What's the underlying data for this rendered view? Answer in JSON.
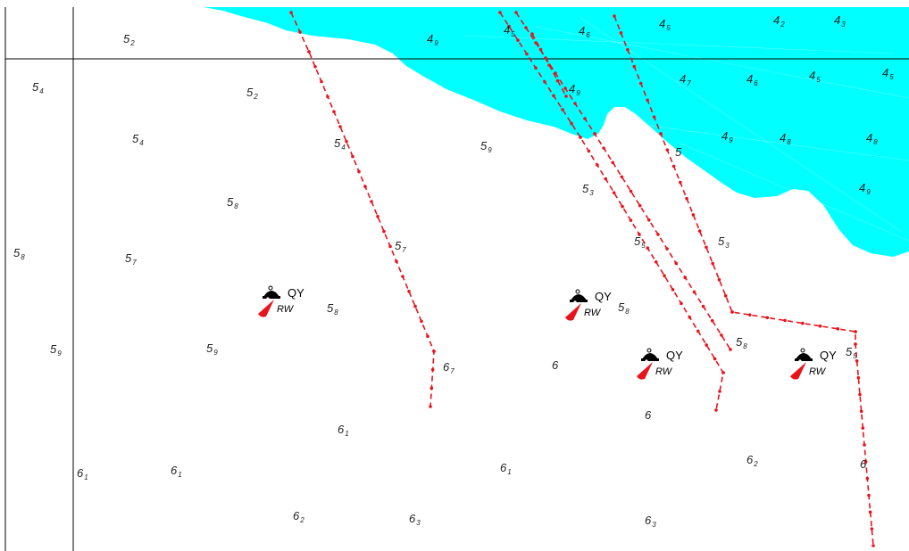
{
  "map": {
    "water_color": "#00ffff",
    "route_color": "#e8141b",
    "grid_color": "#000000",
    "sounding_color": "#222222"
  },
  "soundings": [
    {
      "base": "5",
      "sub": "2"
    },
    {
      "base": "5",
      "sub": "4"
    },
    {
      "base": "5",
      "sub": "2"
    },
    {
      "base": "5",
      "sub": "4"
    },
    {
      "base": "5",
      "sub": "4"
    },
    {
      "base": "5",
      "sub": "8"
    },
    {
      "base": "5",
      "sub": "8"
    },
    {
      "base": "5",
      "sub": "7"
    },
    {
      "base": "5",
      "sub": "7"
    },
    {
      "base": "5",
      "sub": "8"
    },
    {
      "base": "5",
      "sub": "9"
    },
    {
      "base": "5",
      "sub": "9"
    },
    {
      "base": "5",
      "sub": "9"
    },
    {
      "base": "5",
      "sub": "3"
    },
    {
      "base": "5",
      "sub": "5"
    },
    {
      "base": "5",
      "sub": "3"
    },
    {
      "base": "5",
      "sub": "8"
    },
    {
      "base": "5",
      "sub": "8"
    },
    {
      "base": "5",
      "sub": "5"
    },
    {
      "base": "4",
      "sub": "9"
    },
    {
      "base": "4",
      "sub": "5"
    },
    {
      "base": "4",
      "sub": "6"
    },
    {
      "base": "4",
      "sub": "5"
    },
    {
      "base": "4",
      "sub": "2"
    },
    {
      "base": "4",
      "sub": "3"
    },
    {
      "base": "4",
      "sub": "9"
    },
    {
      "base": "4",
      "sub": "7"
    },
    {
      "base": "4",
      "sub": "6"
    },
    {
      "base": "4",
      "sub": "5"
    },
    {
      "base": "4",
      "sub": "5"
    },
    {
      "base": "4",
      "sub": "9"
    },
    {
      "base": "4",
      "sub": "8"
    },
    {
      "base": "4",
      "sub": "8"
    },
    {
      "base": "4",
      "sub": "9"
    },
    {
      "base": "5",
      "sub": ""
    },
    {
      "base": "6",
      "sub": "7"
    },
    {
      "base": "6",
      "sub": ""
    },
    {
      "base": "6",
      "sub": ""
    },
    {
      "base": "6",
      "sub": "1"
    },
    {
      "base": "6",
      "sub": "1"
    },
    {
      "base": "6",
      "sub": "1"
    },
    {
      "base": "6",
      "sub": "1"
    },
    {
      "base": "6",
      "sub": "2"
    },
    {
      "base": "6",
      "sub": ""
    },
    {
      "base": "6",
      "sub": "2"
    },
    {
      "base": "6",
      "sub": "3"
    },
    {
      "base": "6",
      "sub": "3"
    }
  ],
  "wrecks": [
    {
      "label": "QY",
      "buoy": "RW"
    },
    {
      "label": "QY",
      "buoy": "RW"
    },
    {
      "label": "QY",
      "buoy": "RW"
    },
    {
      "label": "QY",
      "buoy": "RW"
    }
  ]
}
